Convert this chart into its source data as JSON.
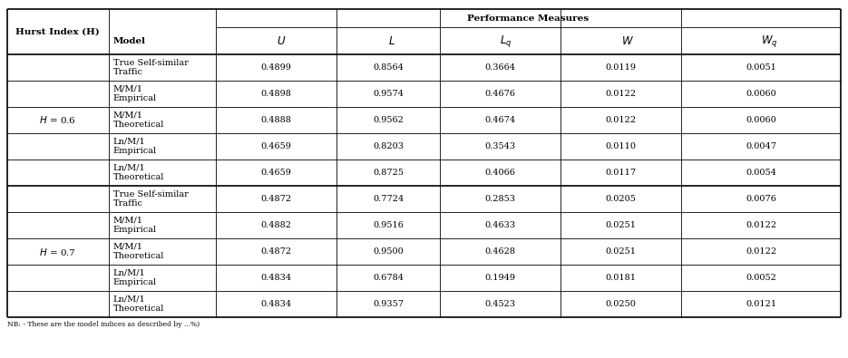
{
  "title": "Performance Measures",
  "col1_header": "Hurst Index (H)",
  "col2_header": "Model",
  "section1_label": "= 0.6",
  "section2_label": "= 0.7",
  "rows_s1": [
    {
      "model": "True Self-similar\nTraffic",
      "U": "0.4899",
      "L": "0.8564",
      "Lq": "0.3664",
      "W": "0.0119",
      "Wq": "0.0051"
    },
    {
      "model": "M/M/1\nEmpirical",
      "U": "0.4898",
      "L": "0.9574",
      "Lq": "0.4676",
      "W": "0.0122",
      "Wq": "0.0060"
    },
    {
      "model": "M/M/1\nTheoretical",
      "U": "0.4888",
      "L": "0.9562",
      "Lq": "0.4674",
      "W": "0.0122",
      "Wq": "0.0060"
    },
    {
      "model": "Ln/M/1\nEmpirical",
      "U": "0.4659",
      "L": "0.8203",
      "Lq": "0.3543",
      "W": "0.0110",
      "Wq": "0.0047"
    },
    {
      "model": "Ln/M/1\nTheoretical",
      "U": "0.4659",
      "L": "0.8725",
      "Lq": "0.4066",
      "W": "0.0117",
      "Wq": "0.0054"
    }
  ],
  "rows_s2": [
    {
      "model": "True Self-similar\nTraffic",
      "U": "0.4872",
      "L": "0.7724",
      "Lq": "0.2853",
      "W": "0.0205",
      "Wq": "0.0076"
    },
    {
      "model": "M/M/1\nEmpirical",
      "U": "0.4882",
      "L": "0.9516",
      "Lq": "0.4633",
      "W": "0.0251",
      "Wq": "0.0122"
    },
    {
      "model": "M/M/1\nTheoretical",
      "U": "0.4872",
      "L": "0.9500",
      "Lq": "0.4628",
      "W": "0.0251",
      "Wq": "0.0122"
    },
    {
      "model": "Ln/M/1\nEmpirical",
      "U": "0.4834",
      "L": "0.6784",
      "Lq": "0.1949",
      "W": "0.0181",
      "Wq": "0.0052"
    },
    {
      "model": "Ln/M/1\nTheoretical",
      "U": "0.4834",
      "L": "0.9357",
      "Lq": "0.4523",
      "W": "0.0250",
      "Wq": "0.0121"
    }
  ],
  "line_color": "#000000",
  "text_color": "#000000",
  "font_size": 7.0,
  "font_size_header": 7.5,
  "font_size_perf": 8.5,
  "footnote": "NB: - These are the model indices as described by ...%)"
}
